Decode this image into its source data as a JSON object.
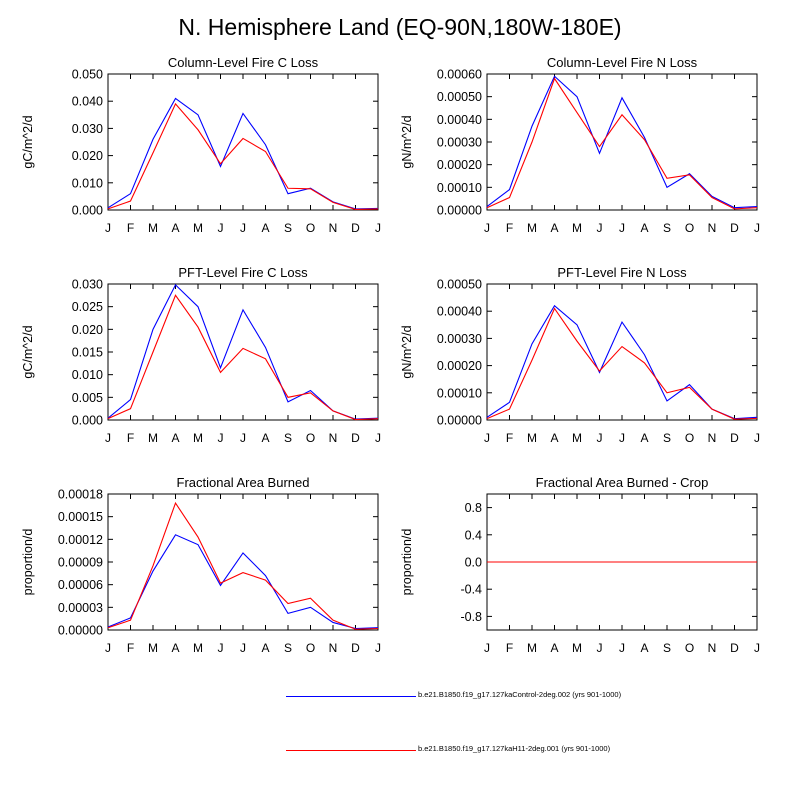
{
  "page_title": "N. Hemisphere Land (EQ-90N,180W-180E)",
  "colors": {
    "control": "#0000ff",
    "h11": "#ff0000"
  },
  "legend": [
    {
      "label": "b.e21.B1850.f19_g17.127kaControl-2deg.002 (yrs 901-1000)",
      "color": "#0000ff"
    },
    {
      "label": "b.e21.B1850.f19_g17.127kaH11-2deg.001 (yrs 901-1000)",
      "color": "#ff0000"
    }
  ],
  "chart_data": [
    {
      "type": "line",
      "title": "Column-Level Fire C Loss",
      "ylabel": "gC/m^2/d",
      "categories": [
        "J",
        "F",
        "M",
        "A",
        "M",
        "J",
        "J",
        "A",
        "S",
        "O",
        "N",
        "D",
        "J"
      ],
      "ylim": [
        0,
        0.05
      ],
      "yticks": [
        0,
        0.01,
        0.02,
        0.03,
        0.04,
        0.05
      ],
      "ytick_labels": [
        "0.000",
        "0.010",
        "0.020",
        "0.030",
        "0.040",
        "0.050"
      ],
      "series": [
        {
          "name": "b.e21.B1850.f19_g17.127kaControl-2deg.002 (yrs 901-1000)",
          "color": "#0000ff",
          "values": [
            0.0008,
            0.006,
            0.026,
            0.041,
            0.035,
            0.016,
            0.0355,
            0.024,
            0.006,
            0.008,
            0.003,
            0.0004,
            0.0006
          ]
        },
        {
          "name": "b.e21.B1850.f19_g17.127kaH11-2deg.001 (yrs 901-1000)",
          "color": "#ff0000",
          "values": [
            0.0004,
            0.0033,
            0.021,
            0.039,
            0.0295,
            0.017,
            0.0263,
            0.0215,
            0.008,
            0.0078,
            0.0028,
            0.0002,
            0.0004
          ]
        }
      ]
    },
    {
      "type": "line",
      "title": "Column-Level Fire N Loss",
      "ylabel": "gN/m^2/d",
      "categories": [
        "J",
        "F",
        "M",
        "A",
        "M",
        "J",
        "J",
        "A",
        "S",
        "O",
        "N",
        "D",
        "J"
      ],
      "ylim": [
        0,
        0.0006
      ],
      "yticks": [
        0,
        0.0001,
        0.0002,
        0.0003,
        0.0004,
        0.0005,
        0.0006
      ],
      "ytick_labels": [
        "0.00000",
        "0.00010",
        "0.00020",
        "0.00030",
        "0.00040",
        "0.00050",
        "0.00060"
      ],
      "series": [
        {
          "name": "b.e21.B1850.f19_g17.127kaControl-2deg.002 (yrs 901-1000)",
          "color": "#0000ff",
          "values": [
            1.5e-05,
            9e-05,
            0.00037,
            0.00059,
            0.0005,
            0.00025,
            0.000495,
            0.00032,
            0.0001,
            0.00016,
            6e-05,
            1e-05,
            1.5e-05
          ]
        },
        {
          "name": "b.e21.B1850.f19_g17.127kaH11-2deg.001 (yrs 901-1000)",
          "color": "#ff0000",
          "values": [
            1e-05,
            5.5e-05,
            0.0003,
            0.00058,
            0.00043,
            0.00028,
            0.00042,
            0.00031,
            0.00014,
            0.000155,
            5.5e-05,
            5e-06,
            1e-05
          ]
        }
      ]
    },
    {
      "type": "line",
      "title": "PFT-Level Fire C Loss",
      "ylabel": "gC/m^2/d",
      "categories": [
        "J",
        "F",
        "M",
        "A",
        "M",
        "J",
        "J",
        "A",
        "S",
        "O",
        "N",
        "D",
        "J"
      ],
      "ylim": [
        0,
        0.03
      ],
      "yticks": [
        0,
        0.005,
        0.01,
        0.015,
        0.02,
        0.025,
        0.03
      ],
      "ytick_labels": [
        "0.000",
        "0.005",
        "0.010",
        "0.015",
        "0.020",
        "0.025",
        "0.030"
      ],
      "series": [
        {
          "name": "b.e21.B1850.f19_g17.127kaControl-2deg.002 (yrs 901-1000)",
          "color": "#0000ff",
          "values": [
            0.0004,
            0.0045,
            0.02,
            0.0298,
            0.025,
            0.0115,
            0.0243,
            0.016,
            0.004,
            0.0065,
            0.002,
            0.0002,
            0.0004
          ]
        },
        {
          "name": "b.e21.B1850.f19_g17.127kaH11-2deg.001 (yrs 901-1000)",
          "color": "#ff0000",
          "values": [
            0.0003,
            0.0025,
            0.015,
            0.0275,
            0.0205,
            0.0105,
            0.0158,
            0.0135,
            0.005,
            0.006,
            0.002,
            0.0001,
            0.0003
          ]
        }
      ]
    },
    {
      "type": "line",
      "title": "PFT-Level Fire N Loss",
      "ylabel": "gN/m^2/d",
      "categories": [
        "J",
        "F",
        "M",
        "A",
        "M",
        "J",
        "J",
        "A",
        "S",
        "O",
        "N",
        "D",
        "J"
      ],
      "ylim": [
        0,
        0.0005
      ],
      "yticks": [
        0,
        0.0001,
        0.0002,
        0.0003,
        0.0004,
        0.0005
      ],
      "ytick_labels": [
        "0.00000",
        "0.00010",
        "0.00020",
        "0.00030",
        "0.00040",
        "0.00050"
      ],
      "series": [
        {
          "name": "b.e21.B1850.f19_g17.127kaControl-2deg.002 (yrs 901-1000)",
          "color": "#0000ff",
          "values": [
            1e-05,
            6.5e-05,
            0.00028,
            0.00042,
            0.00035,
            0.000175,
            0.00036,
            0.00024,
            7e-05,
            0.00013,
            4e-05,
            5e-06,
            1e-05
          ]
        },
        {
          "name": "b.e21.B1850.f19_g17.127kaH11-2deg.001 (yrs 901-1000)",
          "color": "#ff0000",
          "values": [
            5e-06,
            4e-05,
            0.00022,
            0.00041,
            0.00029,
            0.00018,
            0.00027,
            0.00021,
            0.0001,
            0.00012,
            4e-05,
            3e-06,
            6e-06
          ]
        }
      ]
    },
    {
      "type": "line",
      "title": "Fractional Area Burned",
      "ylabel": "proportion/d",
      "categories": [
        "J",
        "F",
        "M",
        "A",
        "M",
        "J",
        "J",
        "A",
        "S",
        "O",
        "N",
        "D",
        "J"
      ],
      "ylim": [
        0,
        0.00018
      ],
      "yticks": [
        0,
        3e-05,
        6e-05,
        9e-05,
        0.00012,
        0.00015,
        0.00018
      ],
      "ytick_labels": [
        "0.00000",
        "0.00003",
        "0.00006",
        "0.00009",
        "0.00012",
        "0.00015",
        "0.00018"
      ],
      "series": [
        {
          "name": "b.e21.B1850.f19_g17.127kaControl-2deg.002 (yrs 901-1000)",
          "color": "#0000ff",
          "values": [
            4e-06,
            1.6e-05,
            7.8e-05,
            0.000126,
            0.000113,
            5.9e-05,
            0.000102,
            7.2e-05,
            2.2e-05,
            3e-05,
            1e-05,
            2e-06,
            3e-06
          ]
        },
        {
          "name": "b.e21.B1850.f19_g17.127kaH11-2deg.001 (yrs 901-1000)",
          "color": "#ff0000",
          "values": [
            3e-06,
            1.3e-05,
            8.5e-05,
            0.000168,
            0.000123,
            6.2e-05,
            7.6e-05,
            6.6e-05,
            3.5e-05,
            4.2e-05,
            1.3e-05,
            1e-06,
            2e-06
          ]
        }
      ]
    },
    {
      "type": "line",
      "title": "Fractional Area Burned - Crop",
      "ylabel": "proportion/d",
      "categories": [
        "J",
        "F",
        "M",
        "A",
        "M",
        "J",
        "J",
        "A",
        "S",
        "O",
        "N",
        "D",
        "J"
      ],
      "ylim": [
        -1,
        1
      ],
      "yticks": [
        -0.8,
        -0.4,
        0,
        0.4,
        0.8
      ],
      "ytick_labels": [
        "-0.8",
        "-0.4",
        "0.0",
        "0.4",
        "0.8"
      ],
      "series": [
        {
          "name": "b.e21.B1850.f19_g17.127kaControl-2deg.002 (yrs 901-1000)",
          "color": "#0000ff",
          "values": [
            0,
            0,
            0,
            0,
            0,
            0,
            0,
            0,
            0,
            0,
            0,
            0,
            0
          ]
        },
        {
          "name": "b.e21.B1850.f19_g17.127kaH11-2deg.001 (yrs 901-1000)",
          "color": "#ff0000",
          "values": [
            0,
            0,
            0,
            0,
            0,
            0,
            0,
            0,
            0,
            0,
            0,
            0,
            0
          ]
        }
      ]
    }
  ]
}
